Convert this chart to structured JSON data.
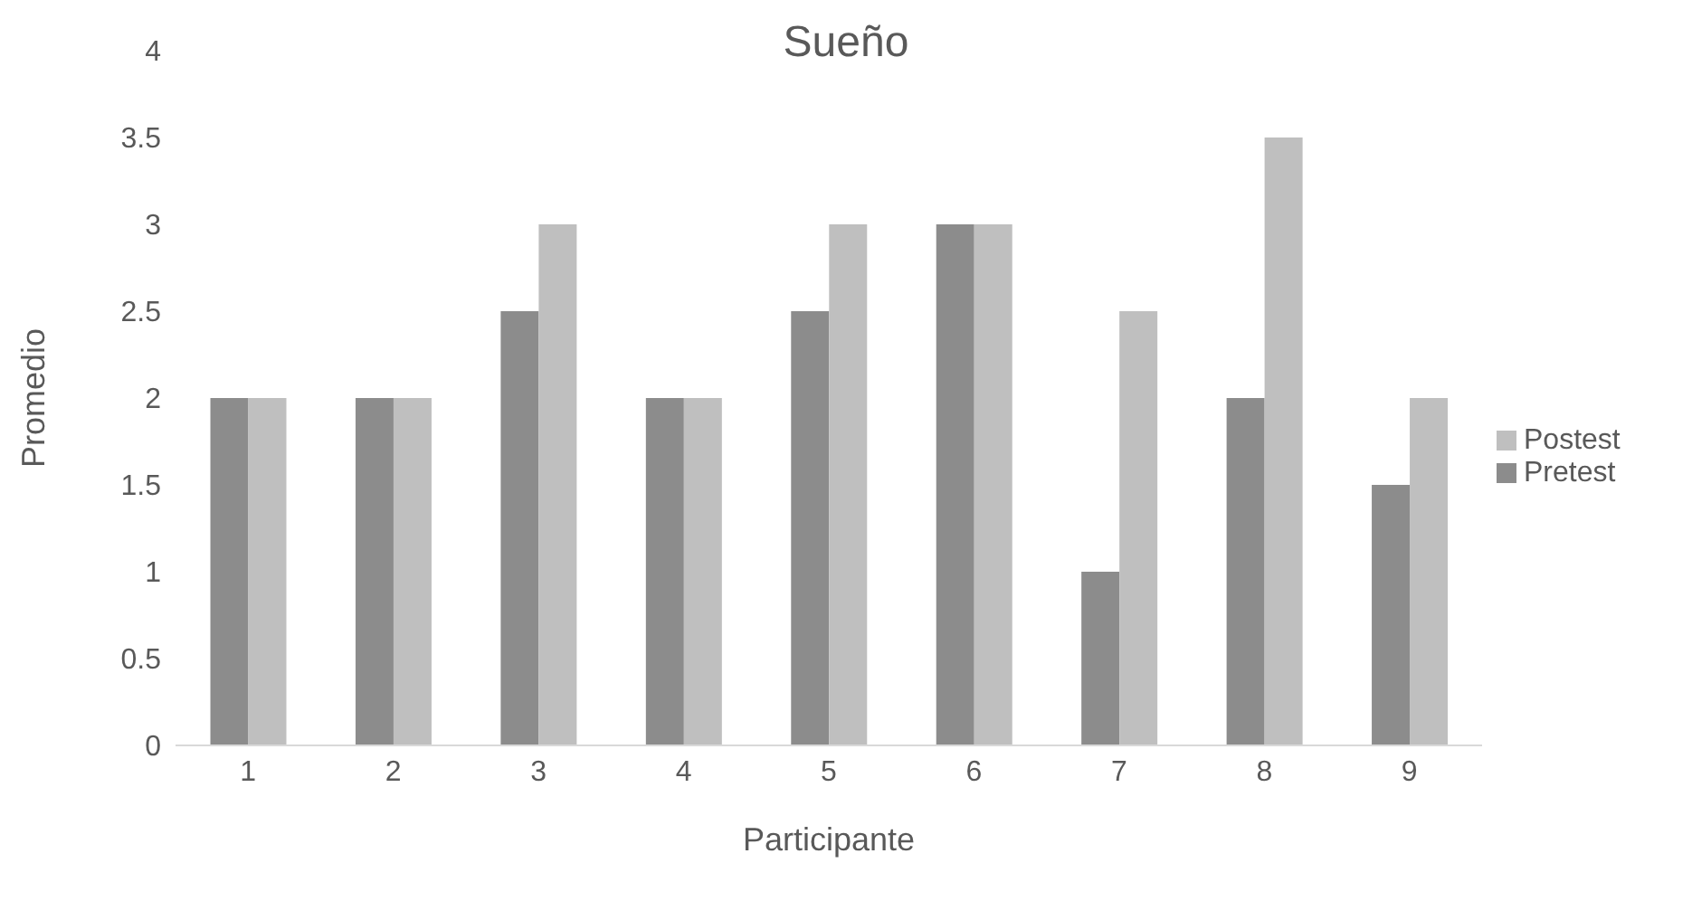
{
  "chart_data": {
    "type": "bar",
    "title": "Sueño",
    "xlabel": "Participante",
    "ylabel": "Promedio",
    "categories": [
      "1",
      "2",
      "3",
      "4",
      "5",
      "6",
      "7",
      "8",
      "9"
    ],
    "series": [
      {
        "name": "Pretest",
        "color": "#8c8c8c",
        "values": [
          2,
          2,
          2.5,
          2,
          2.5,
          3,
          1,
          2,
          1.5
        ]
      },
      {
        "name": "Postest",
        "color": "#bfbfbf",
        "values": [
          2,
          2,
          3,
          2,
          3,
          3,
          2.5,
          3.5,
          2
        ]
      }
    ],
    "ylim": [
      0,
      4
    ],
    "yticks": [
      0,
      0.5,
      1,
      1.5,
      2,
      2.5,
      3,
      3.5,
      4
    ],
    "grid": false,
    "legend": "right"
  }
}
